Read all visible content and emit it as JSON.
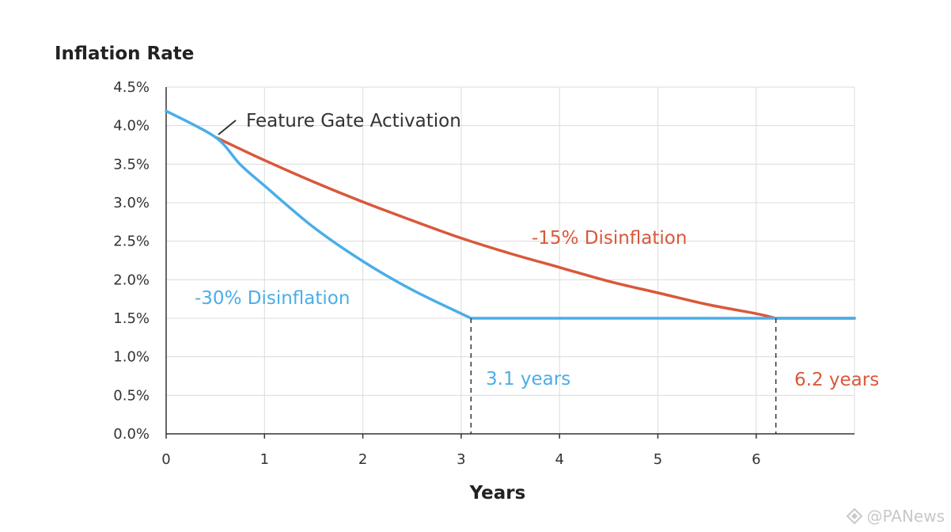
{
  "chart_data": {
    "type": "line",
    "xlabel": "Years",
    "ylabel": "Inflation Rate",
    "xlim": [
      0,
      7
    ],
    "ylim": [
      0,
      4.5
    ],
    "x_ticks": [
      0,
      1,
      2,
      3,
      4,
      5,
      6
    ],
    "x_tick_labels": [
      "0",
      "1",
      "2",
      "3",
      "4",
      "5",
      "6"
    ],
    "y_ticks": [
      0,
      0.5,
      1.0,
      1.5,
      2.0,
      2.5,
      3.0,
      3.5,
      4.0,
      4.5
    ],
    "y_tick_labels": [
      "0.0%",
      "0.5%",
      "1.0%",
      "1.5%",
      "2.0%",
      "2.5%",
      "3.0%",
      "3.5%",
      "4.0%",
      "4.5%"
    ],
    "grid": true,
    "series": [
      {
        "name": "-15% Disinflation",
        "color": "#d9583b",
        "points": [
          [
            0.5,
            3.85
          ],
          [
            1.0,
            3.55
          ],
          [
            1.5,
            3.27
          ],
          [
            2.0,
            3.01
          ],
          [
            2.5,
            2.77
          ],
          [
            3.0,
            2.54
          ],
          [
            3.5,
            2.34
          ],
          [
            4.0,
            2.16
          ],
          [
            4.5,
            1.98
          ],
          [
            5.0,
            1.83
          ],
          [
            5.5,
            1.68
          ],
          [
            6.0,
            1.56
          ],
          [
            6.2,
            1.5
          ],
          [
            7.0,
            1.5
          ]
        ]
      },
      {
        "name": "-30% Disinflation",
        "color": "#4aaee8",
        "points": [
          [
            0.0,
            4.19
          ],
          [
            0.5,
            3.85
          ],
          [
            0.75,
            3.5
          ],
          [
            1.0,
            3.22
          ],
          [
            1.5,
            2.68
          ],
          [
            2.0,
            2.24
          ],
          [
            2.5,
            1.87
          ],
          [
            3.1,
            1.5
          ],
          [
            7.0,
            1.5
          ]
        ]
      }
    ],
    "markers": [
      {
        "x": 3.1,
        "label": "3.1 years",
        "color": "#4aaee8"
      },
      {
        "x": 6.2,
        "label": "6.2 years",
        "color": "#d9583b"
      }
    ],
    "annotations": [
      {
        "text": "Feature Gate Activation",
        "x": 0.5,
        "y": 3.85,
        "color": "#333333"
      },
      {
        "text": "-15% Disinflation",
        "color": "#d9583b"
      },
      {
        "text": "-30% Disinflation",
        "color": "#4aaee8"
      }
    ]
  },
  "watermark": {
    "text": "@PANews",
    "icon": "panews-logo-icon"
  }
}
